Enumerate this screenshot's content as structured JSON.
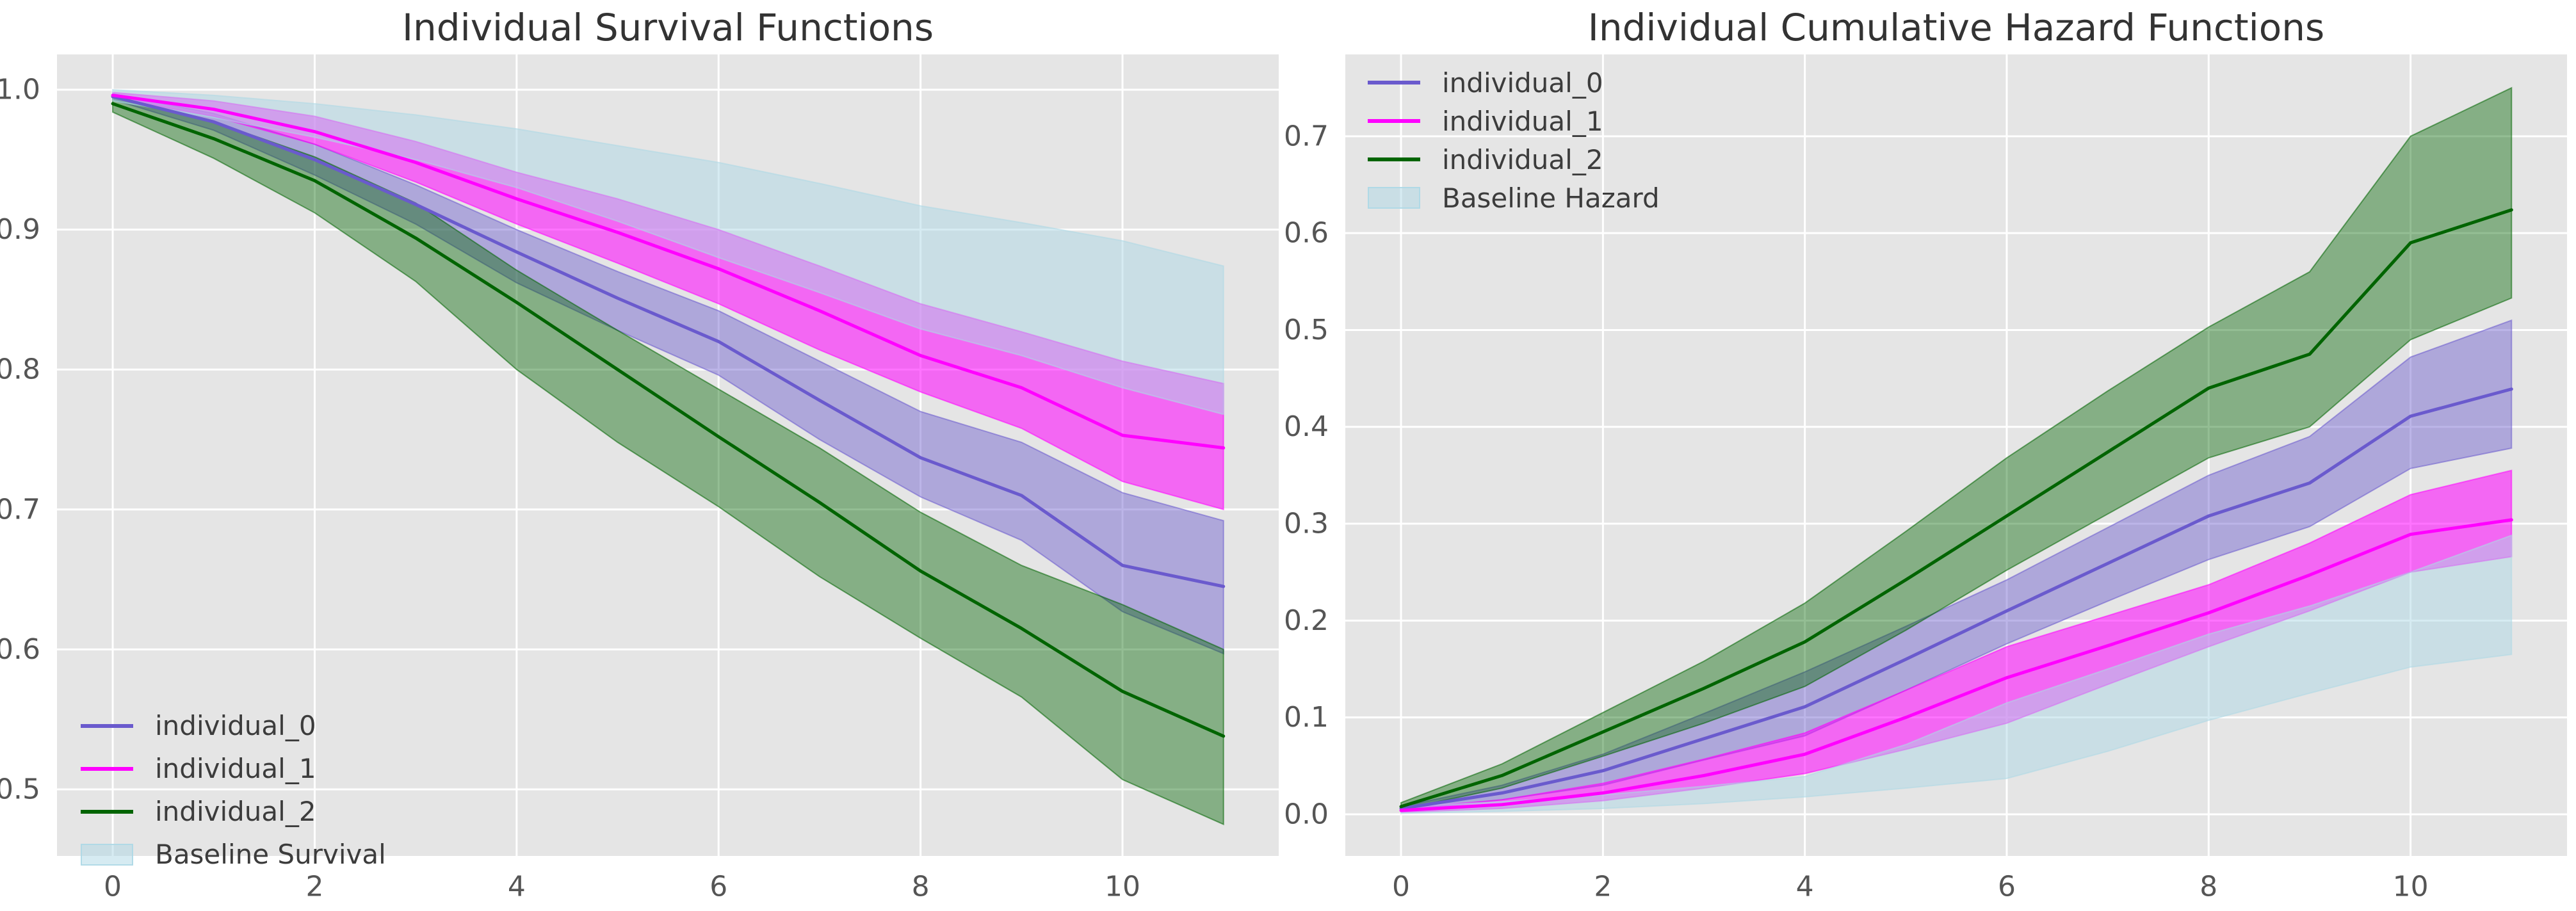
{
  "theme": {
    "page_bg": "#ffffff",
    "plot_bg": "#E5E5E5",
    "grid_color": "#FFFFFF",
    "tick_color": "#555555",
    "title_color": "#333333",
    "legend_text_color": "#3c3c3c",
    "accent_colors": [
      "#6A5ACD",
      "#FF00FF",
      "#006400",
      "#ADD8E6"
    ]
  },
  "chart_data": [
    {
      "type": "line",
      "title": "Individual Survival Functions",
      "xlabel": "",
      "ylabel": "",
      "grid": true,
      "legend_position": "lower left",
      "x": [
        0,
        1,
        2,
        3,
        4,
        5,
        6,
        7,
        8,
        9,
        10,
        11
      ],
      "xticks": [
        0,
        2,
        4,
        6,
        8,
        10
      ],
      "xtick_labels": [
        "0",
        "2",
        "4",
        "6",
        "8",
        "10"
      ],
      "yticks": [
        0.5,
        0.6,
        0.7,
        0.8,
        0.9,
        1.0
      ],
      "ytick_labels": [
        "0.5",
        "0.6",
        "0.7",
        "0.8",
        "0.9",
        "1.0"
      ],
      "xlim": [
        -0.552,
        11.547
      ],
      "ylim": [
        0.4524,
        1.0252
      ],
      "series": [
        {
          "name": "individual_0",
          "color": "#6A5ACD",
          "band_alpha": 0.45,
          "values": [
            0.995,
            0.977,
            0.95,
            0.918,
            0.884,
            0.851,
            0.82,
            0.778,
            0.737,
            0.71,
            0.66,
            0.645
          ],
          "band_upper": [
            0.997,
            0.983,
            0.961,
            0.932,
            0.9,
            0.87,
            0.842,
            0.806,
            0.77,
            0.748,
            0.712,
            0.692
          ],
          "band_lower": [
            0.993,
            0.971,
            0.939,
            0.904,
            0.862,
            0.828,
            0.796,
            0.75,
            0.709,
            0.678,
            0.627,
            0.597
          ]
        },
        {
          "name": "individual_1",
          "color": "#FF00FF",
          "band_alpha": 0.55,
          "values": [
            0.996,
            0.986,
            0.97,
            0.948,
            0.922,
            0.898,
            0.872,
            0.842,
            0.81,
            0.787,
            0.753,
            0.744
          ],
          "band_upper": [
            0.998,
            0.992,
            0.981,
            0.963,
            0.941,
            0.922,
            0.9,
            0.874,
            0.847,
            0.827,
            0.806,
            0.79
          ],
          "band_lower": [
            0.994,
            0.981,
            0.961,
            0.934,
            0.904,
            0.876,
            0.847,
            0.814,
            0.784,
            0.758,
            0.72,
            0.7
          ]
        },
        {
          "name": "individual_2",
          "color": "#006400",
          "band_alpha": 0.42,
          "values": [
            0.99,
            0.965,
            0.935,
            0.894,
            0.848,
            0.8,
            0.752,
            0.705,
            0.656,
            0.615,
            0.57,
            0.538
          ],
          "band_upper": [
            0.994,
            0.977,
            0.952,
            0.919,
            0.871,
            0.828,
            0.786,
            0.744,
            0.698,
            0.66,
            0.632,
            0.6
          ],
          "band_lower": [
            0.984,
            0.951,
            0.912,
            0.863,
            0.8,
            0.748,
            0.702,
            0.652,
            0.608,
            0.566,
            0.507,
            0.475
          ]
        },
        {
          "name": "Baseline Survival",
          "color": "#ADD8E6",
          "band_alpha": 0.5,
          "band_upper": [
            1.0,
            0.996,
            0.99,
            0.982,
            0.972,
            0.96,
            0.948,
            0.933,
            0.917,
            0.905,
            0.892,
            0.874
          ],
          "band_lower": [
            0.992,
            0.98,
            0.966,
            0.95,
            0.93,
            0.906,
            0.88,
            0.855,
            0.829,
            0.81,
            0.787,
            0.768
          ]
        }
      ]
    },
    {
      "type": "line",
      "title": "Individual Cumulative Hazard Functions",
      "xlabel": "",
      "ylabel": "",
      "grid": true,
      "legend_position": "upper left",
      "x": [
        0,
        1,
        2,
        3,
        4,
        5,
        6,
        7,
        8,
        9,
        10,
        11
      ],
      "xticks": [
        0,
        2,
        4,
        6,
        8,
        10
      ],
      "xtick_labels": [
        "0",
        "2",
        "4",
        "6",
        "8",
        "10"
      ],
      "yticks": [
        0.0,
        0.1,
        0.2,
        0.3,
        0.4,
        0.5,
        0.6,
        0.7
      ],
      "ytick_labels": [
        "0.0",
        "0.1",
        "0.2",
        "0.3",
        "0.4",
        "0.5",
        "0.6",
        "0.7"
      ],
      "xlim": [
        -0.552,
        11.55
      ],
      "ylim": [
        -0.043,
        0.7845
      ],
      "series": [
        {
          "name": "individual_0",
          "color": "#6A5ACD",
          "band_alpha": 0.45,
          "values": [
            0.006,
            0.022,
            0.045,
            0.078,
            0.111,
            0.16,
            0.21,
            0.259,
            0.308,
            0.342,
            0.411,
            0.439
          ],
          "band_upper": [
            0.008,
            0.03,
            0.062,
            0.104,
            0.147,
            0.194,
            0.242,
            0.296,
            0.35,
            0.39,
            0.472,
            0.51
          ],
          "band_lower": [
            0.004,
            0.015,
            0.03,
            0.056,
            0.081,
            0.128,
            0.176,
            0.22,
            0.263,
            0.297,
            0.357,
            0.378
          ]
        },
        {
          "name": "individual_1",
          "color": "#FF00FF",
          "band_alpha": 0.55,
          "values": [
            0.004,
            0.01,
            0.022,
            0.04,
            0.062,
            0.1,
            0.141,
            0.174,
            0.208,
            0.247,
            0.289,
            0.304
          ],
          "band_upper": [
            0.006,
            0.015,
            0.032,
            0.057,
            0.084,
            0.128,
            0.173,
            0.205,
            0.237,
            0.28,
            0.33,
            0.355
          ],
          "band_lower": [
            0.002,
            0.006,
            0.014,
            0.027,
            0.042,
            0.067,
            0.094,
            0.134,
            0.173,
            0.21,
            0.25,
            0.266
          ]
        },
        {
          "name": "individual_2",
          "color": "#006400",
          "band_alpha": 0.42,
          "values": [
            0.008,
            0.04,
            0.085,
            0.13,
            0.178,
            0.242,
            0.308,
            0.374,
            0.44,
            0.475,
            0.59,
            0.624
          ],
          "band_upper": [
            0.012,
            0.052,
            0.105,
            0.158,
            0.218,
            0.292,
            0.368,
            0.437,
            0.503,
            0.56,
            0.7,
            0.75
          ],
          "band_lower": [
            0.005,
            0.027,
            0.06,
            0.094,
            0.132,
            0.19,
            0.252,
            0.31,
            0.368,
            0.4,
            0.49,
            0.533
          ]
        },
        {
          "name": "Baseline Hazard",
          "color": "#ADD8E6",
          "band_alpha": 0.5,
          "band_upper": [
            0.008,
            0.013,
            0.02,
            0.029,
            0.039,
            0.072,
            0.115,
            0.15,
            0.186,
            0.215,
            0.25,
            0.288
          ],
          "band_lower": [
            0.001,
            0.003,
            0.006,
            0.011,
            0.018,
            0.027,
            0.037,
            0.065,
            0.097,
            0.125,
            0.152,
            0.165
          ]
        }
      ]
    }
  ]
}
